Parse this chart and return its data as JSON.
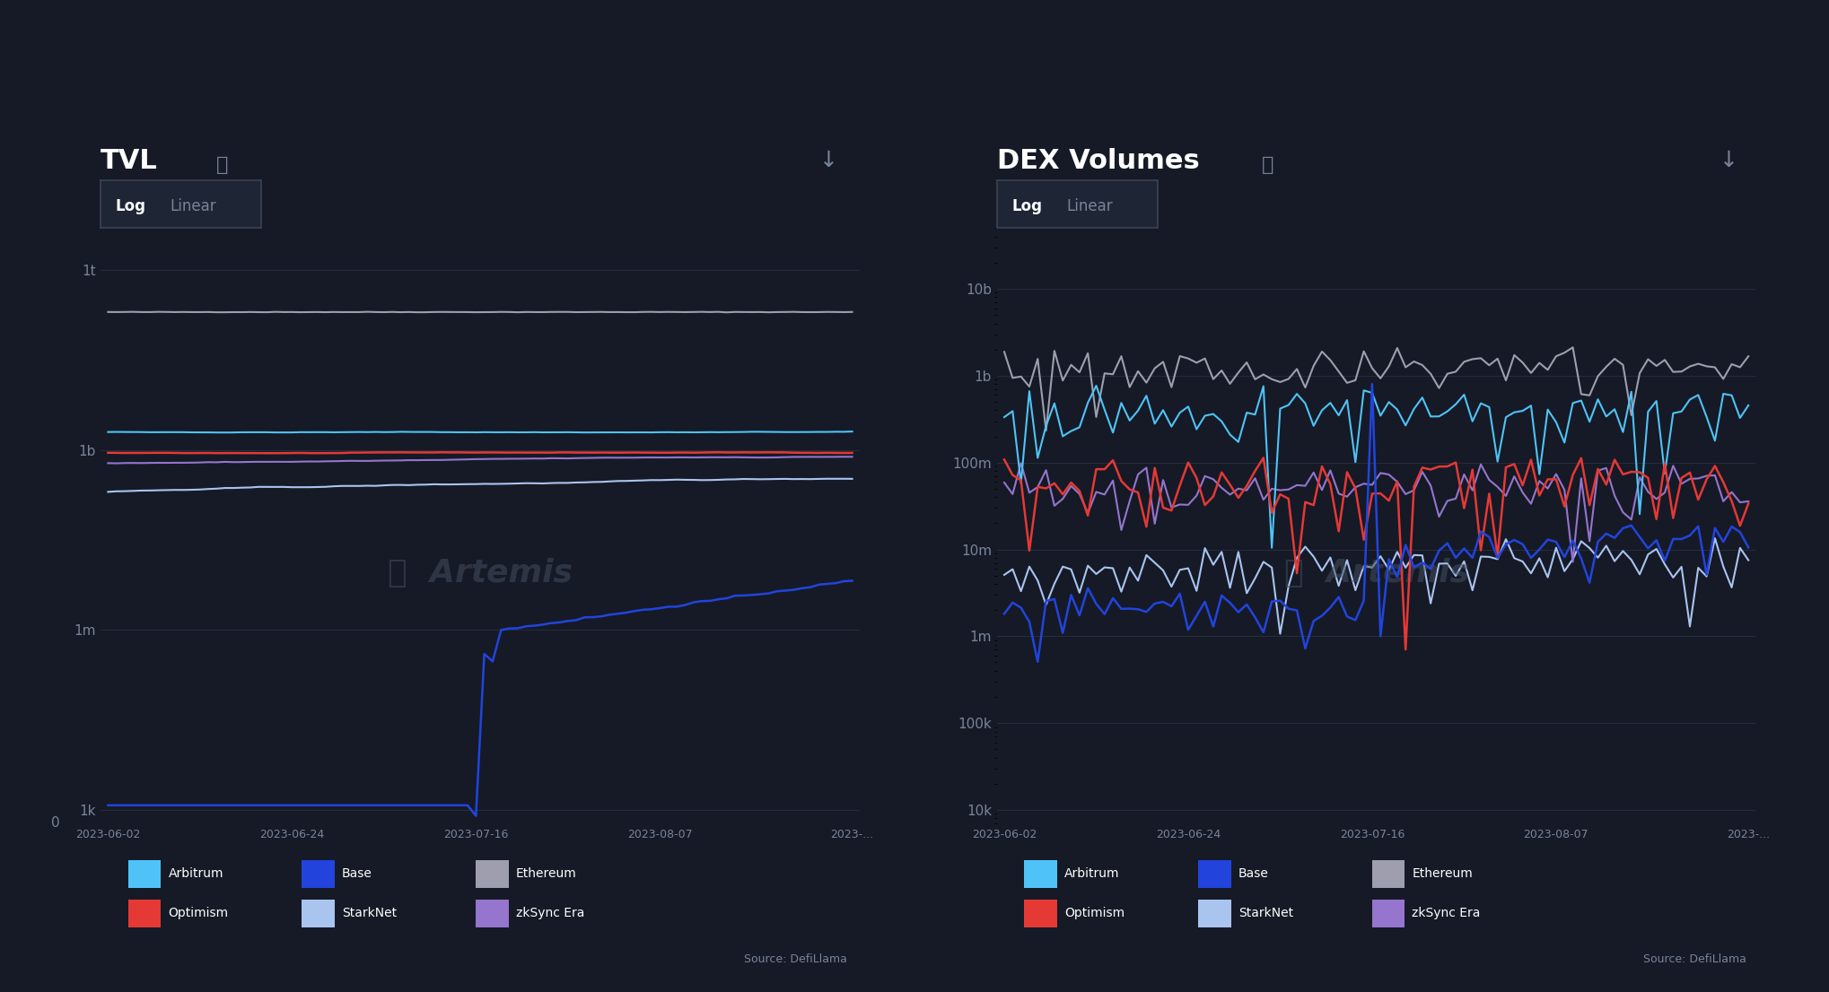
{
  "bg_color": "#151a26",
  "panel_bg": "#151a26",
  "grid_color": "#2a3045",
  "text_color": "#ffffff",
  "sub_text_color": "#7a8499",
  "title_left": "TVL",
  "title_right": "DEX Volumes",
  "x_labels": [
    "2023-06-02",
    "2023-06-24",
    "2023-07-16",
    "2023-08-07",
    "2023-..."
  ],
  "legend_items_row1": [
    {
      "label": "Arbitrum",
      "color": "#4fc3f7"
    },
    {
      "label": "Base",
      "color": "#2244dd"
    },
    {
      "label": "Ethereum",
      "color": "#9e9eae"
    }
  ],
  "legend_items_row2": [
    {
      "label": "Optimism",
      "color": "#e53935"
    },
    {
      "label": "StarkNet",
      "color": "#aac4f0"
    },
    {
      "label": "zkSync Era",
      "color": "#9575cd"
    }
  ],
  "tvl_ytick_vals": [
    1000,
    1000000,
    1000000000,
    1000000000000
  ],
  "tvl_ytick_labels": [
    "1k",
    "1m",
    "1b",
    "1t"
  ],
  "dex_ytick_vals": [
    10000,
    100000,
    1000000,
    10000000,
    100000000,
    1000000000,
    10000000000
  ],
  "dex_ytick_labels": [
    "10k",
    "100k",
    "1m",
    "10m",
    "100m",
    "1b",
    "10b"
  ],
  "source_text": "Source: DefiLlama",
  "colors": {
    "arbitrum": "#4fc3f7",
    "base": "#2244dd",
    "ethereum": "#9e9eae",
    "optimism": "#e53935",
    "starknet": "#aac4f0",
    "zksync": "#9575cd"
  }
}
